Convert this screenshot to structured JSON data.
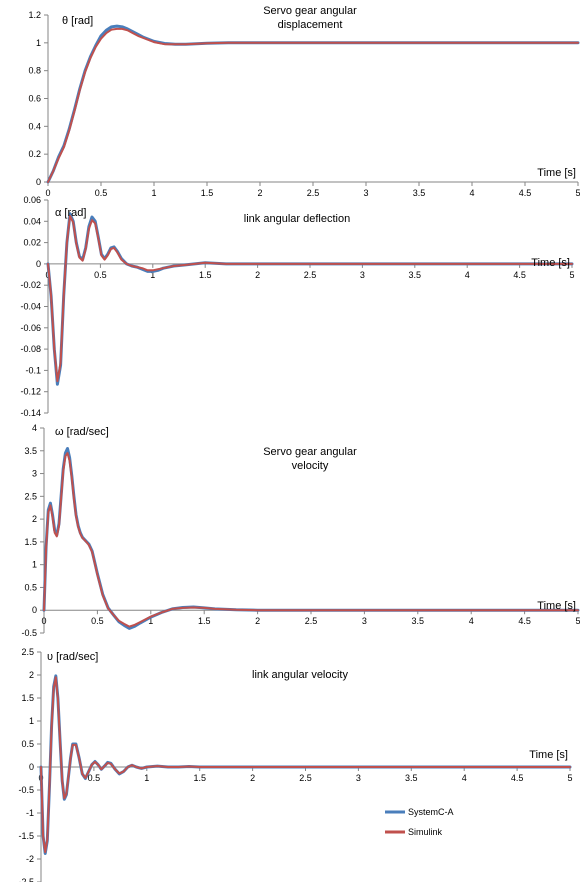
{
  "chart_data": [
    {
      "type": "line",
      "title": "Servo gear angular displacement",
      "title_lines": [
        "Servo gear angular",
        "displacement"
      ],
      "ylabel": "θ [rad]",
      "xlabel": "Time [s]",
      "xlim": [
        0,
        5
      ],
      "ylim": [
        0,
        1.2
      ],
      "x_ticks": [
        "0",
        "0.5",
        "1",
        "1.5",
        "2",
        "2.5",
        "3",
        "3.5",
        "4",
        "4.5",
        "5"
      ],
      "y_ticks": [
        "0",
        "0.2",
        "0.4",
        "0.6",
        "0.8",
        "1",
        "1.2"
      ],
      "series": [
        {
          "name": "SystemC-A",
          "color": "#4a7ebb",
          "x": [
            0,
            0.05,
            0.1,
            0.15,
            0.2,
            0.25,
            0.3,
            0.35,
            0.4,
            0.45,
            0.5,
            0.55,
            0.6,
            0.65,
            0.7,
            0.75,
            0.8,
            0.85,
            0.9,
            1.0,
            1.1,
            1.2,
            1.3,
            1.4,
            1.5,
            1.7,
            2.0,
            3.0,
            4.0,
            5.0
          ],
          "y": [
            0,
            0.08,
            0.18,
            0.26,
            0.38,
            0.52,
            0.67,
            0.8,
            0.9,
            0.98,
            1.05,
            1.09,
            1.115,
            1.12,
            1.115,
            1.1,
            1.08,
            1.06,
            1.04,
            1.01,
            0.995,
            0.99,
            0.99,
            0.993,
            0.997,
            1.0,
            1.0,
            1.0,
            1.0,
            1.0
          ]
        },
        {
          "name": "Simulink",
          "color": "#c0504d",
          "x": [
            0,
            0.05,
            0.1,
            0.15,
            0.2,
            0.25,
            0.3,
            0.35,
            0.4,
            0.45,
            0.5,
            0.55,
            0.6,
            0.65,
            0.7,
            0.75,
            0.8,
            0.85,
            0.9,
            1.0,
            1.1,
            1.2,
            1.3,
            1.4,
            1.5,
            1.7,
            2.0,
            3.0,
            4.0,
            5.0
          ],
          "y": [
            0,
            0.08,
            0.17,
            0.25,
            0.37,
            0.51,
            0.66,
            0.79,
            0.89,
            0.97,
            1.03,
            1.07,
            1.095,
            1.1,
            1.1,
            1.09,
            1.07,
            1.05,
            1.035,
            1.005,
            0.99,
            0.99,
            0.99,
            0.993,
            0.997,
            1.0,
            1.0,
            1.0,
            1.0,
            1.0
          ]
        }
      ]
    },
    {
      "type": "line",
      "title": "link angular deflection",
      "title_lines": [
        "link angular deflection"
      ],
      "ylabel": "α [rad]",
      "xlabel": "Time [s]",
      "xlim": [
        0,
        5
      ],
      "ylim": [
        -0.14,
        0.06
      ],
      "x_ticks": [
        "0",
        "0.5",
        "1",
        "1.5",
        "2",
        "2.5",
        "3",
        "3.5",
        "4",
        "4.5",
        "5"
      ],
      "y_ticks": [
        "-0.14",
        "-0.12",
        "-0.1",
        "-0.08",
        "-0.06",
        "-0.04",
        "-0.02",
        "0",
        "0.02",
        "0.04",
        "0.06"
      ],
      "series": [
        {
          "name": "SystemC-A",
          "color": "#4a7ebb",
          "x": [
            0,
            0.03,
            0.06,
            0.09,
            0.12,
            0.15,
            0.18,
            0.21,
            0.24,
            0.27,
            0.3,
            0.33,
            0.36,
            0.39,
            0.42,
            0.45,
            0.48,
            0.51,
            0.54,
            0.57,
            0.6,
            0.63,
            0.66,
            0.7,
            0.75,
            0.8,
            0.85,
            0.9,
            0.95,
            1.0,
            1.05,
            1.1,
            1.2,
            1.3,
            1.4,
            1.5,
            1.7,
            2.0,
            3.0,
            4.0,
            5.0
          ],
          "y": [
            0,
            -0.03,
            -0.08,
            -0.113,
            -0.095,
            -0.03,
            0.02,
            0.047,
            0.04,
            0.02,
            0.007,
            0.004,
            0.015,
            0.035,
            0.044,
            0.04,
            0.025,
            0.009,
            0.005,
            0.009,
            0.015,
            0.016,
            0.012,
            0.005,
            0.0,
            -0.002,
            -0.003,
            -0.005,
            -0.007,
            -0.007,
            -0.006,
            -0.004,
            -0.002,
            -0.001,
            0.0,
            0.001,
            0.0,
            0.0,
            0.0,
            0.0,
            0.0
          ]
        },
        {
          "name": "Simulink",
          "color": "#c0504d",
          "x": [
            0,
            0.03,
            0.06,
            0.09,
            0.12,
            0.15,
            0.18,
            0.21,
            0.24,
            0.27,
            0.3,
            0.33,
            0.36,
            0.39,
            0.42,
            0.45,
            0.48,
            0.51,
            0.54,
            0.57,
            0.6,
            0.63,
            0.66,
            0.7,
            0.75,
            0.8,
            0.85,
            0.9,
            0.95,
            1.0,
            1.05,
            1.1,
            1.2,
            1.3,
            1.4,
            1.5,
            1.7,
            2.0,
            3.0,
            4.0,
            5.0
          ],
          "y": [
            0,
            -0.03,
            -0.08,
            -0.11,
            -0.093,
            -0.03,
            0.02,
            0.045,
            0.039,
            0.019,
            0.006,
            0.003,
            0.014,
            0.033,
            0.041,
            0.038,
            0.024,
            0.008,
            0.004,
            0.008,
            0.014,
            0.015,
            0.011,
            0.004,
            0.0,
            -0.002,
            -0.003,
            -0.004,
            -0.006,
            -0.006,
            -0.005,
            -0.004,
            -0.002,
            -0.001,
            0.0,
            0.001,
            0.0,
            0.0,
            0.0,
            0.0,
            0.0
          ]
        }
      ]
    },
    {
      "type": "line",
      "title": "Servo gear angular velocity",
      "title_lines": [
        "Servo gear angular",
        "velocity"
      ],
      "ylabel": "ω [rad/sec]",
      "xlabel": "Time [s]",
      "xlim": [
        0,
        5
      ],
      "ylim": [
        -0.5,
        4
      ],
      "x_ticks": [
        "0",
        "0.5",
        "1",
        "1.5",
        "2",
        "2.5",
        "3",
        "3.5",
        "4",
        "4.5",
        "5"
      ],
      "y_ticks": [
        "-0.5",
        "0",
        "0.5",
        "1",
        "1.5",
        "2",
        "2.5",
        "3",
        "3.5",
        "4"
      ],
      "series": [
        {
          "name": "SystemC-A",
          "color": "#4a7ebb",
          "x": [
            0,
            0.02,
            0.04,
            0.06,
            0.08,
            0.1,
            0.12,
            0.14,
            0.16,
            0.18,
            0.2,
            0.22,
            0.24,
            0.26,
            0.28,
            0.3,
            0.32,
            0.34,
            0.36,
            0.38,
            0.4,
            0.42,
            0.45,
            0.48,
            0.5,
            0.55,
            0.6,
            0.65,
            0.7,
            0.75,
            0.8,
            0.85,
            0.9,
            1.0,
            1.1,
            1.2,
            1.3,
            1.4,
            1.5,
            1.6,
            1.8,
            2.0,
            3.0,
            4.0,
            5.0
          ],
          "y": [
            0,
            1.4,
            2.2,
            2.35,
            2.1,
            1.75,
            1.65,
            1.9,
            2.5,
            3.1,
            3.45,
            3.55,
            3.35,
            2.95,
            2.5,
            2.1,
            1.85,
            1.7,
            1.6,
            1.55,
            1.5,
            1.45,
            1.3,
            1.0,
            0.8,
            0.35,
            0.05,
            -0.1,
            -0.25,
            -0.33,
            -0.4,
            -0.35,
            -0.28,
            -0.15,
            -0.05,
            0.03,
            0.06,
            0.07,
            0.05,
            0.03,
            0.01,
            0.0,
            0.0,
            0.0,
            0.0
          ]
        },
        {
          "name": "Simulink",
          "color": "#c0504d",
          "x": [
            0,
            0.02,
            0.04,
            0.06,
            0.08,
            0.1,
            0.12,
            0.14,
            0.16,
            0.18,
            0.2,
            0.22,
            0.24,
            0.26,
            0.28,
            0.3,
            0.32,
            0.34,
            0.36,
            0.38,
            0.4,
            0.42,
            0.45,
            0.48,
            0.5,
            0.55,
            0.6,
            0.65,
            0.7,
            0.75,
            0.8,
            0.85,
            0.9,
            1.0,
            1.1,
            1.2,
            1.3,
            1.4,
            1.5,
            1.6,
            1.8,
            2.0,
            3.0,
            4.0,
            5.0
          ],
          "y": [
            0,
            1.35,
            2.15,
            2.3,
            2.05,
            1.7,
            1.62,
            1.85,
            2.45,
            3.05,
            3.38,
            3.45,
            3.28,
            2.9,
            2.45,
            2.07,
            1.83,
            1.68,
            1.59,
            1.54,
            1.49,
            1.43,
            1.28,
            0.98,
            0.78,
            0.33,
            0.04,
            -0.1,
            -0.23,
            -0.3,
            -0.36,
            -0.32,
            -0.26,
            -0.14,
            -0.05,
            0.03,
            0.05,
            0.06,
            0.05,
            0.03,
            0.01,
            0.0,
            0.0,
            0.0,
            0.0
          ]
        }
      ]
    },
    {
      "type": "line",
      "title": "link angular velocity",
      "title_lines": [
        "link angular velocity"
      ],
      "ylabel": "υ [rad/sec]",
      "xlabel": "Time [s]",
      "xlim": [
        0,
        5
      ],
      "ylim": [
        -2.5,
        2.5
      ],
      "x_ticks": [
        "0",
        "0.5",
        "1",
        "1.5",
        "2",
        "2.5",
        "3",
        "3.5",
        "4",
        "4.5",
        "5"
      ],
      "y_ticks": [
        "-2.5",
        "-2",
        "-1.5",
        "-1",
        "-0.5",
        "0",
        "0.5",
        "1",
        "1.5",
        "2",
        "2.5"
      ],
      "series": [
        {
          "name": "SystemC-A",
          "color": "#4a7ebb",
          "x": [
            0,
            0.01,
            0.02,
            0.04,
            0.06,
            0.08,
            0.1,
            0.12,
            0.14,
            0.16,
            0.18,
            0.2,
            0.22,
            0.24,
            0.26,
            0.28,
            0.3,
            0.33,
            0.36,
            0.39,
            0.42,
            0.45,
            0.48,
            0.51,
            0.54,
            0.57,
            0.6,
            0.63,
            0.66,
            0.7,
            0.74,
            0.78,
            0.82,
            0.86,
            0.9,
            0.95,
            1.0,
            1.1,
            1.2,
            1.3,
            1.4,
            1.5,
            1.7,
            2.0,
            3.0,
            4.0,
            5.0
          ],
          "y": [
            0,
            -0.8,
            -1.5,
            -1.88,
            -1.6,
            -0.4,
            0.9,
            1.75,
            1.98,
            1.5,
            0.6,
            -0.3,
            -0.7,
            -0.6,
            -0.2,
            0.2,
            0.5,
            0.5,
            0.2,
            -0.15,
            -0.25,
            -0.1,
            0.05,
            0.12,
            0.05,
            -0.05,
            0.02,
            0.1,
            0.08,
            -0.05,
            -0.15,
            -0.1,
            0.0,
            0.04,
            0.0,
            -0.03,
            0.0,
            0.02,
            0.0,
            0.0,
            0.01,
            0.0,
            0.0,
            0.0,
            0.0,
            0.0,
            0.0
          ]
        },
        {
          "name": "Simulink",
          "color": "#c0504d",
          "x": [
            0,
            0.01,
            0.02,
            0.04,
            0.06,
            0.08,
            0.1,
            0.12,
            0.14,
            0.16,
            0.18,
            0.2,
            0.22,
            0.24,
            0.26,
            0.28,
            0.3,
            0.33,
            0.36,
            0.39,
            0.42,
            0.45,
            0.48,
            0.51,
            0.54,
            0.57,
            0.6,
            0.63,
            0.66,
            0.7,
            0.74,
            0.78,
            0.82,
            0.86,
            0.9,
            0.95,
            1.0,
            1.1,
            1.2,
            1.3,
            1.4,
            1.5,
            1.7,
            2.0,
            3.0,
            4.0,
            5.0
          ],
          "y": [
            0,
            -0.8,
            -1.5,
            -1.85,
            -1.58,
            -0.4,
            0.88,
            1.72,
            1.95,
            1.48,
            0.58,
            -0.3,
            -0.68,
            -0.58,
            -0.2,
            0.2,
            0.48,
            0.48,
            0.2,
            -0.15,
            -0.24,
            -0.1,
            0.05,
            0.11,
            0.05,
            -0.05,
            0.02,
            0.09,
            0.07,
            -0.05,
            -0.14,
            -0.1,
            0.0,
            0.04,
            0.0,
            -0.03,
            0.0,
            0.02,
            0.0,
            0.0,
            0.01,
            0.0,
            0.0,
            0.0,
            0.0,
            0.0,
            0.0
          ]
        }
      ],
      "legend": [
        {
          "name": "SystemC-A",
          "color": "#4a7ebb"
        },
        {
          "name": "Simulink",
          "color": "#c0504d"
        }
      ],
      "legend_position": "bottom-right"
    }
  ]
}
